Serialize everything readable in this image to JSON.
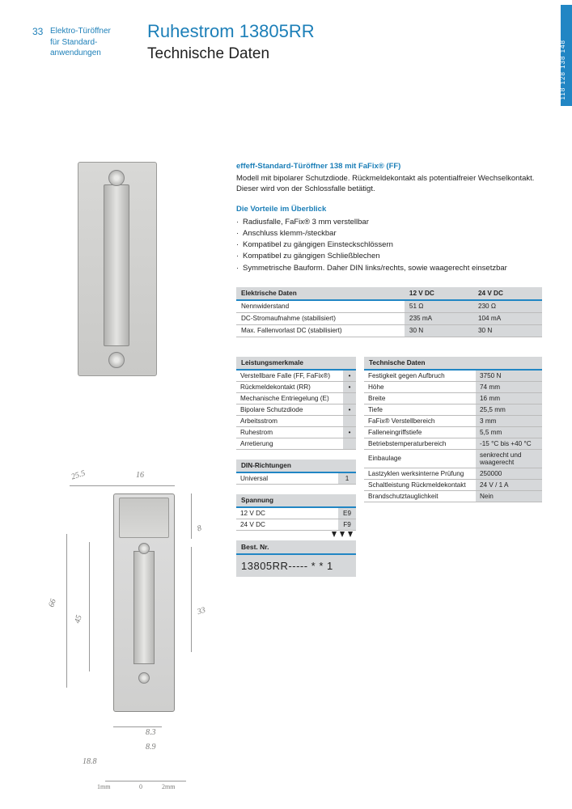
{
  "page_number": "33",
  "breadcrumb_line1": "Elektro-Türöffner",
  "breadcrumb_line2": "für Standard-",
  "breadcrumb_line3": "anwendungen",
  "title_main": "Ruhestrom 13805RR",
  "title_sub": "Technische Daten",
  "side_tab": "118 128 138 148",
  "intro_heading": "effeff-Standard-Türöffner 138 mit FaFix® (FF)",
  "intro_text": "Modell mit bipolarer Schutzdiode. Rückmeldekontakt als potentialfreier Wechselkontakt. Dieser wird von der Schlossfalle betätigt.",
  "advantages_heading": "Die Vorteile im Überblick",
  "advantages": [
    "Radiusfalle, FaFix® 3 mm verstellbar",
    "Anschluss klemm-/steckbar",
    "Kompatibel zu gängigen Einsteckschlössern",
    "Kompatibel zu gängigen Schließblechen",
    "Symmetrische Bauform. Daher DIN links/rechts, sowie waagerecht einsetzbar"
  ],
  "electrical_table": {
    "header": [
      "Elektrische Daten",
      "12 V DC",
      "24 V DC"
    ],
    "rows": [
      [
        "Nennwiderstand",
        "51 Ω",
        "230 Ω"
      ],
      [
        "DC-Stromaufnahme (stabilisiert)",
        "235 mA",
        "104 mA"
      ],
      [
        "Max. Fallenvorlast DC (stabilisiert)",
        "30 N",
        "30 N"
      ]
    ],
    "col_widths": [
      "55%",
      "22.5%",
      "22.5%"
    ]
  },
  "features_table": {
    "header": "Leistungsmerkmale",
    "rows": [
      [
        "Verstellbare Falle (FF, FaFix®)",
        "•"
      ],
      [
        "Rückmeldekontakt (RR)",
        "•"
      ],
      [
        "Mechanische Entriegelung (E)",
        ""
      ],
      [
        "Bipolare Schutzdiode",
        "•"
      ],
      [
        "Arbeitsstrom",
        ""
      ],
      [
        "Ruhestrom",
        "•"
      ],
      [
        "Arretierung",
        ""
      ]
    ]
  },
  "din_table": {
    "header": "DIN-Richtungen",
    "rows": [
      [
        "Universal",
        "1"
      ]
    ]
  },
  "voltage_table": {
    "header": "Spannung",
    "rows": [
      [
        "12 V DC",
        "E9"
      ],
      [
        "24 V DC",
        "F9"
      ]
    ]
  },
  "tech_table": {
    "header": "Technische Daten",
    "rows": [
      [
        "Festigkeit gegen Aufbruch",
        "3750 N"
      ],
      [
        "Höhe",
        "74 mm"
      ],
      [
        "Breite",
        "16 mm"
      ],
      [
        "Tiefe",
        "25,5 mm"
      ],
      [
        "FaFix® Verstellbereich",
        "3 mm"
      ],
      [
        "Falleneingriffstiefe",
        "5,5 mm"
      ],
      [
        "Betriebstemperaturbereich",
        "-15 °C bis +40 °C"
      ],
      [
        "Einbaulage",
        "senkrecht und waagerecht"
      ],
      [
        "Lastzyklen werksinterne Prüfung",
        "250000"
      ],
      [
        "Schaltleistung Rückmeldekontakt",
        "24 V / 1 A"
      ],
      [
        "Brandschutztauglichkeit",
        "Nein"
      ]
    ]
  },
  "bestnr_label": "Best. Nr.",
  "bestnr_value": "13805RR-----   * * 1",
  "dimensions": {
    "top_left": "25.5",
    "top_right": "16",
    "side_8": "8",
    "side_33": "33",
    "left_66": "66",
    "left_45": "45",
    "bot_83": "8.3",
    "bot_89": "8.9",
    "bot_188": "18.8",
    "ruler_1mm": "1mm",
    "ruler_0": "0",
    "ruler_2mm": "2mm"
  },
  "colors": {
    "accent": "#1c7fb8",
    "tab_bg": "#2186c4",
    "table_header_bg": "#d6d8da",
    "table_rule": "#2186c4"
  }
}
